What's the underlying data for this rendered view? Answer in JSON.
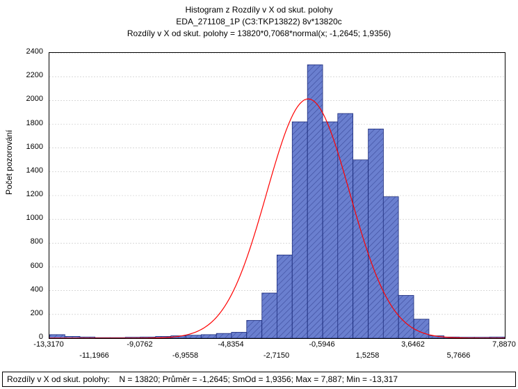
{
  "titles": {
    "line1": "Histogram z Rozdíly v X od skut. polohy",
    "line2": "EDA_271108_1P (C3:TKP13822) 8v*13820c",
    "line3": "Rozdíly v X od skut. polohy = 13820*0,7068*normal(x; -1,2645; 1,9356)"
  },
  "ylabel": "Počet pozorování",
  "stats_label": "Rozdíly v X od skut. polohy:",
  "stats_value": "N = 13820; Průměr = -1,2645; SmOd = 1,9356; Max = 7,887; Min = -13,317",
  "chart": {
    "type": "histogram",
    "xlim": [
      -13.317,
      7.887
    ],
    "ylim": [
      0,
      2400
    ],
    "ytick_step": 200,
    "xticks_upper": [
      -13.317,
      -9.0762,
      -4.8354,
      -0.5946,
      3.6462,
      7.887
    ],
    "xticks_lower": [
      -11.1966,
      -6.9558,
      -2.715,
      1.5258,
      5.7666
    ],
    "xtick_labels_upper": [
      "-13,3170",
      "-9,0762",
      "-4,8354",
      "-0,5946",
      "3,6462",
      "7,8870"
    ],
    "xtick_labels_lower": [
      "-11,1966",
      "-6,9558",
      "-2,7150",
      "1,5258",
      "5,7666"
    ],
    "yticks": [
      0,
      200,
      400,
      600,
      800,
      1000,
      1200,
      1400,
      1600,
      1800,
      2000,
      2200,
      2400
    ],
    "bar_fill": "#6a7fcf",
    "bar_stroke": "#1a2a7a",
    "hatch_color": "#3a4a9a",
    "curve_color": "#ff0000",
    "grid_color": "#c0c0c0",
    "axis_color": "#000000",
    "bin_width": 0.7068,
    "bins": [
      {
        "x": -13.3,
        "count": 30
      },
      {
        "x": -12.6,
        "count": 15
      },
      {
        "x": -11.9,
        "count": 10
      },
      {
        "x": -11.2,
        "count": 5
      },
      {
        "x": -10.49,
        "count": 5
      },
      {
        "x": -9.78,
        "count": 8
      },
      {
        "x": -9.08,
        "count": 10
      },
      {
        "x": -8.37,
        "count": 15
      },
      {
        "x": -7.66,
        "count": 20
      },
      {
        "x": -6.96,
        "count": 25
      },
      {
        "x": -6.25,
        "count": 30
      },
      {
        "x": -5.54,
        "count": 40
      },
      {
        "x": -4.84,
        "count": 50
      },
      {
        "x": -4.13,
        "count": 150
      },
      {
        "x": -3.42,
        "count": 380
      },
      {
        "x": -2.72,
        "count": 700
      },
      {
        "x": -2.01,
        "count": 1820
      },
      {
        "x": -1.3,
        "count": 2300
      },
      {
        "x": -0.59,
        "count": 1820
      },
      {
        "x": 0.11,
        "count": 1890
      },
      {
        "x": 0.82,
        "count": 1500
      },
      {
        "x": 1.53,
        "count": 1760
      },
      {
        "x": 2.23,
        "count": 1190
      },
      {
        "x": 2.94,
        "count": 360
      },
      {
        "x": 3.65,
        "count": 160
      },
      {
        "x": 4.35,
        "count": 20
      },
      {
        "x": 5.06,
        "count": 10
      },
      {
        "x": 5.77,
        "count": 8
      },
      {
        "x": 6.47,
        "count": 8
      },
      {
        "x": 7.18,
        "count": 10
      }
    ],
    "normal": {
      "mean": -1.2645,
      "sd": 1.9356,
      "scale": 9767
    }
  }
}
